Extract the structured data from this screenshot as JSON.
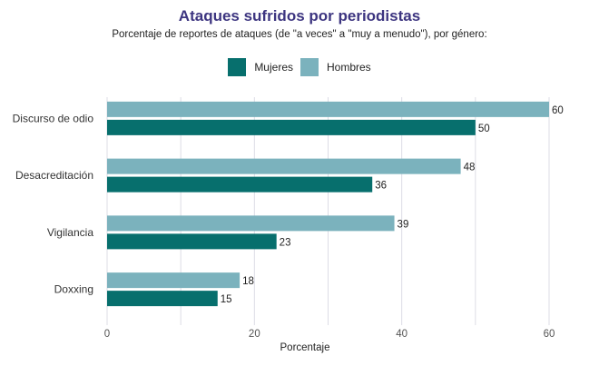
{
  "chart_data": {
    "type": "bar",
    "orientation": "horizontal",
    "title": "Ataques sufridos por periodistas",
    "subtitle": "Porcentaje de reportes de ataques (de \"a veces\" a \"muy a menudo\"), por género:",
    "xlabel": "Porcentaje",
    "ylabel": "",
    "xlim": [
      0,
      60
    ],
    "xticks": [
      0,
      20,
      40,
      60
    ],
    "grid_step": 10,
    "grid": true,
    "legend_position": "top-center",
    "categories": [
      "Discurso de odio",
      "Desacreditación",
      "Vigilancia",
      "Doxxing"
    ],
    "series": [
      {
        "name": "Mujeres",
        "color": "#076f6d",
        "values": [
          50,
          36,
          23,
          15
        ]
      },
      {
        "name": "Hombres",
        "color": "#7bb2bd",
        "values": [
          60,
          48,
          39,
          18
        ]
      }
    ],
    "legend_order": [
      "Mujeres",
      "Hombres"
    ]
  }
}
